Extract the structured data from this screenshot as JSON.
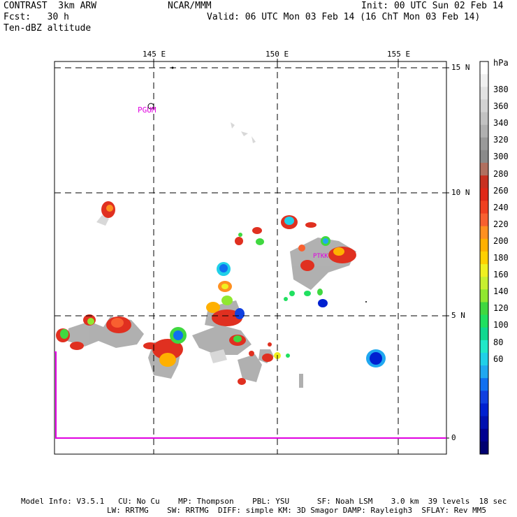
{
  "header": {
    "line1_left": "CONTRAST  3km ARW",
    "line1_mid": "NCAR/MMM",
    "line1_right": "Init: 00 UTC Sun 02 Feb 14",
    "line2_left": "Fcst:   30 h",
    "line2_right": "Valid: 06 UTC Mon 03 Feb 14 (16 ChT Mon 03 Feb 14)",
    "line3_left": "Ten-dBZ altitude"
  },
  "map": {
    "lon_labels": [
      "145 E",
      "150 E",
      "155 E"
    ],
    "lat_labels": [
      "15 N",
      "10 N",
      "5 N"
    ],
    "right_axis_zero": "0",
    "station_labels": [
      "PGUM",
      "PTKK"
    ],
    "ocean_color": "#ffffff",
    "grid_color": "#000000",
    "trace_color": "#e000e0"
  },
  "colorbar": {
    "unit": "hPa",
    "labels": [
      "380",
      "360",
      "340",
      "320",
      "300",
      "280",
      "260",
      "240",
      "220",
      "200",
      "180",
      "160",
      "140",
      "120",
      "100",
      "80",
      "60"
    ],
    "colors": [
      "#ffffff",
      "#f0f0f0",
      "#e2e2e2",
      "#d2d2d2",
      "#c2c2c2",
      "#b0b0b0",
      "#9a9a9a",
      "#8a8a8a",
      "#b07060",
      "#c83020",
      "#e02818",
      "#f04020",
      "#f86030",
      "#ff9020",
      "#ffb000",
      "#ffd000",
      "#f0f020",
      "#c8f030",
      "#90e830",
      "#40d840",
      "#20e060",
      "#10d890",
      "#20e8c8",
      "#20d0e8",
      "#20a8f0",
      "#1070f0",
      "#1040e0",
      "#0020d0",
      "#0010b0",
      "#000090",
      "#000070"
    ]
  },
  "footer": {
    "line1": "Model Info: V3.5.1   CU: No Cu    MP: Thompson    PBL: YSU      SF: Noah LSM    3.0 km  39 levels  18 sec",
    "line2": "LW: RRTMG    SW: RRTMG  DIFF: simple KM: 3D Smagor DAMP: Rayleigh3  SFLAY: Rev MM5"
  }
}
